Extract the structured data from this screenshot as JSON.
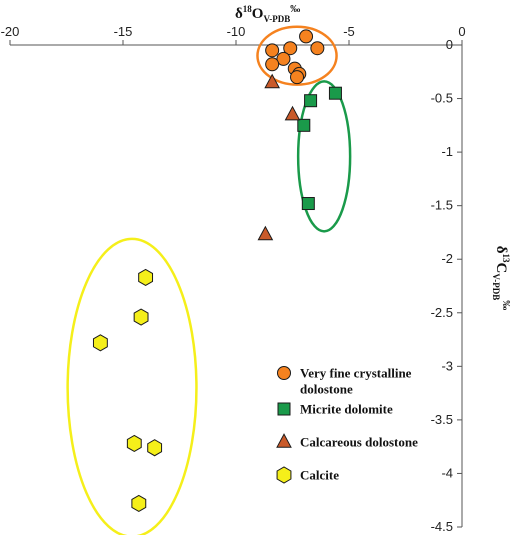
{
  "chart_data": {
    "type": "scatter",
    "xlabel": {
      "main": "δ",
      "sup": "18",
      "sym": "O",
      "sub": "V-PDB",
      "unit": "‰"
    },
    "ylabel": {
      "main": "δ",
      "sup": "13",
      "sym": "C",
      "sub": "V-PDB",
      "unit": "‰"
    },
    "xlim": [
      -20,
      0
    ],
    "ylim": [
      -4.5,
      0
    ],
    "x_axis_position": "top",
    "y_axis_position": "right",
    "x_ticks": [
      -20,
      -15,
      -10,
      -5,
      0
    ],
    "x_tick_labels": [
      "-20",
      "-15",
      "-10",
      "-5",
      "0"
    ],
    "y_ticks": [
      0,
      -0.5,
      -1,
      -1.5,
      -2,
      -2.5,
      -3,
      -3.5,
      -4,
      -4.5
    ],
    "y_tick_labels": [
      "0",
      "-0.5",
      "-1",
      "-1.5",
      "-2",
      "-2.5",
      "-3",
      "-3.5",
      "-4",
      "-4.5"
    ],
    "grid": false,
    "legend_position": "bottom-right",
    "series": [
      {
        "name": "Very fine crystalline dolostone",
        "name_lines": [
          "Very fine crystalline",
          "dolostone"
        ],
        "marker": "circle",
        "color": "#f5821f",
        "stroke": "#1a1a1a",
        "points": [
          [
            -6.9,
            0.08
          ],
          [
            -7.6,
            -0.03
          ],
          [
            -6.4,
            -0.03
          ],
          [
            -8.4,
            -0.05
          ],
          [
            -7.9,
            -0.13
          ],
          [
            -8.4,
            -0.18
          ],
          [
            -7.4,
            -0.22
          ],
          [
            -7.2,
            -0.27
          ],
          [
            -7.3,
            -0.3
          ]
        ]
      },
      {
        "name": "Micrite dolomite",
        "name_lines": [
          "Micrite dolomite"
        ],
        "marker": "square",
        "color": "#1a9a4a",
        "stroke": "#1a1a1a",
        "points": [
          [
            -5.6,
            -0.45
          ],
          [
            -6.7,
            -0.52
          ],
          [
            -7.0,
            -0.75
          ],
          [
            -6.8,
            -1.48
          ]
        ]
      },
      {
        "name": "Calcareous dolostone",
        "name_lines": [
          "Calcareous dolostone"
        ],
        "marker": "triangle",
        "color": "#c95a2a",
        "stroke": "#1a1a1a",
        "points": [
          [
            -8.4,
            -0.35
          ],
          [
            -7.5,
            -0.65
          ],
          [
            -8.7,
            -1.77
          ]
        ]
      },
      {
        "name": "Calcite",
        "name_lines": [
          "Calcite"
        ],
        "marker": "hexagon",
        "color": "#f5ef1a",
        "stroke": "#1a1a1a",
        "points": [
          [
            -14.0,
            -2.17
          ],
          [
            -14.2,
            -2.54
          ],
          [
            -16.0,
            -2.78
          ],
          [
            -14.5,
            -3.72
          ],
          [
            -13.6,
            -3.76
          ],
          [
            -14.3,
            -4.28
          ]
        ]
      }
    ],
    "groups": [
      {
        "name": "orange-group",
        "color": "#f5821f",
        "cx": -7.3,
        "cy": -0.1,
        "rx": 1.75,
        "ry": 0.27
      },
      {
        "name": "green-group",
        "color": "#1a9a4a",
        "cx": -6.1,
        "cy": -1.04,
        "rx": 1.15,
        "ry": 0.7
      },
      {
        "name": "yellow-group",
        "color": "#f5ef1a",
        "cx": -14.6,
        "cy": -3.2,
        "rx": 2.85,
        "ry": 1.39
      }
    ]
  }
}
